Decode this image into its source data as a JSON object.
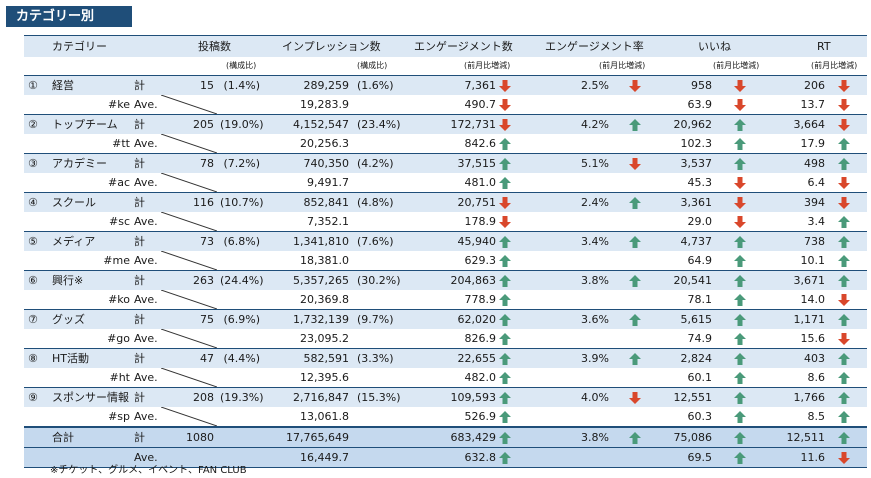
{
  "title": "カテゴリー別",
  "headers": {
    "category": "カテゴリー",
    "posts": "投稿数",
    "impressions": "インプレッション数",
    "engagements": "エンゲージメント数",
    "eng_rate": "エンゲージメント率",
    "likes": "いいね",
    "rt": "RT"
  },
  "subheaders": {
    "posts_ratio": "(構成比)",
    "imp_ratio": "(構成比)",
    "eng_mom": "(前月比増減)",
    "rate_mom": "(前月比増減)",
    "likes_mom": "(前月比増減)",
    "rt_mom": "(前月比増減)"
  },
  "labels": {
    "total": "計",
    "ave": "Ave."
  },
  "colors": {
    "up": "#4a9a7a",
    "down": "#d9472b",
    "header_bg": "#1f4e79",
    "band": "#dce8f4"
  },
  "rows": [
    {
      "num": "①",
      "name": "経営",
      "tag": "#ke",
      "posts": "15",
      "posts_ratio": "(1.4%)",
      "imp": "289,259",
      "imp_ratio": "(1.6%)",
      "eng": "7,361",
      "eng_dir": "down",
      "rate": "2.5%",
      "rate_dir": "down",
      "likes": "958",
      "likes_dir": "down",
      "rt": "206",
      "rt_dir": "down",
      "ave_imp": "19,283.9",
      "ave_eng": "490.7",
      "ave_eng_dir": "down",
      "ave_likes": "63.9",
      "ave_likes_dir": "down",
      "ave_rt": "13.7",
      "ave_rt_dir": "down"
    },
    {
      "num": "②",
      "name": "トップチーム",
      "tag": "#tt",
      "posts": "205",
      "posts_ratio": "(19.0%)",
      "imp": "4,152,547",
      "imp_ratio": "(23.4%)",
      "eng": "172,731",
      "eng_dir": "down",
      "rate": "4.2%",
      "rate_dir": "up",
      "likes": "20,962",
      "likes_dir": "up",
      "rt": "3,664",
      "rt_dir": "down",
      "ave_imp": "20,256.3",
      "ave_eng": "842.6",
      "ave_eng_dir": "up",
      "ave_likes": "102.3",
      "ave_likes_dir": "up",
      "ave_rt": "17.9",
      "ave_rt_dir": "up"
    },
    {
      "num": "③",
      "name": "アカデミー",
      "tag": "#ac",
      "posts": "78",
      "posts_ratio": "(7.2%)",
      "imp": "740,350",
      "imp_ratio": "(4.2%)",
      "eng": "37,515",
      "eng_dir": "up",
      "rate": "5.1%",
      "rate_dir": "down",
      "likes": "3,537",
      "likes_dir": "up",
      "rt": "498",
      "rt_dir": "up",
      "ave_imp": "9,491.7",
      "ave_eng": "481.0",
      "ave_eng_dir": "up",
      "ave_likes": "45.3",
      "ave_likes_dir": "down",
      "ave_rt": "6.4",
      "ave_rt_dir": "down"
    },
    {
      "num": "④",
      "name": "スクール",
      "tag": "#sc",
      "posts": "116",
      "posts_ratio": "(10.7%)",
      "imp": "852,841",
      "imp_ratio": "(4.8%)",
      "eng": "20,751",
      "eng_dir": "down",
      "rate": "2.4%",
      "rate_dir": "up",
      "likes": "3,361",
      "likes_dir": "down",
      "rt": "394",
      "rt_dir": "down",
      "ave_imp": "7,352.1",
      "ave_eng": "178.9",
      "ave_eng_dir": "down",
      "ave_likes": "29.0",
      "ave_likes_dir": "down",
      "ave_rt": "3.4",
      "ave_rt_dir": "up"
    },
    {
      "num": "⑤",
      "name": "メディア",
      "tag": "#me",
      "posts": "73",
      "posts_ratio": "(6.8%)",
      "imp": "1,341,810",
      "imp_ratio": "(7.6%)",
      "eng": "45,940",
      "eng_dir": "up",
      "rate": "3.4%",
      "rate_dir": "up",
      "likes": "4,737",
      "likes_dir": "up",
      "rt": "738",
      "rt_dir": "up",
      "ave_imp": "18,381.0",
      "ave_eng": "629.3",
      "ave_eng_dir": "up",
      "ave_likes": "64.9",
      "ave_likes_dir": "up",
      "ave_rt": "10.1",
      "ave_rt_dir": "up"
    },
    {
      "num": "⑥",
      "name": "興行※",
      "tag": "#ko",
      "posts": "263",
      "posts_ratio": "(24.4%)",
      "imp": "5,357,265",
      "imp_ratio": "(30.2%)",
      "eng": "204,863",
      "eng_dir": "up",
      "rate": "3.8%",
      "rate_dir": "up",
      "likes": "20,541",
      "likes_dir": "up",
      "rt": "3,671",
      "rt_dir": "up",
      "ave_imp": "20,369.8",
      "ave_eng": "778.9",
      "ave_eng_dir": "up",
      "ave_likes": "78.1",
      "ave_likes_dir": "up",
      "ave_rt": "14.0",
      "ave_rt_dir": "down"
    },
    {
      "num": "⑦",
      "name": "グッズ",
      "tag": "#go",
      "posts": "75",
      "posts_ratio": "(6.9%)",
      "imp": "1,732,139",
      "imp_ratio": "(9.7%)",
      "eng": "62,020",
      "eng_dir": "up",
      "rate": "3.6%",
      "rate_dir": "up",
      "likes": "5,615",
      "likes_dir": "up",
      "rt": "1,171",
      "rt_dir": "up",
      "ave_imp": "23,095.2",
      "ave_eng": "826.9",
      "ave_eng_dir": "up",
      "ave_likes": "74.9",
      "ave_likes_dir": "up",
      "ave_rt": "15.6",
      "ave_rt_dir": "down"
    },
    {
      "num": "⑧",
      "name": "HT活動",
      "tag": "#ht",
      "posts": "47",
      "posts_ratio": "(4.4%)",
      "imp": "582,591",
      "imp_ratio": "(3.3%)",
      "eng": "22,655",
      "eng_dir": "up",
      "rate": "3.9%",
      "rate_dir": "up",
      "likes": "2,824",
      "likes_dir": "up",
      "rt": "403",
      "rt_dir": "up",
      "ave_imp": "12,395.6",
      "ave_eng": "482.0",
      "ave_eng_dir": "up",
      "ave_likes": "60.1",
      "ave_likes_dir": "up",
      "ave_rt": "8.6",
      "ave_rt_dir": "up"
    },
    {
      "num": "⑨",
      "name": "スポンサー情報",
      "tag": "#sp",
      "posts": "208",
      "posts_ratio": "(19.3%)",
      "imp": "2,716,847",
      "imp_ratio": "(15.3%)",
      "eng": "109,593",
      "eng_dir": "up",
      "rate": "4.0%",
      "rate_dir": "down",
      "likes": "12,551",
      "likes_dir": "up",
      "rt": "1,766",
      "rt_dir": "up",
      "ave_imp": "13,061.8",
      "ave_eng": "526.9",
      "ave_eng_dir": "up",
      "ave_likes": "60.3",
      "ave_likes_dir": "up",
      "ave_rt": "8.5",
      "ave_rt_dir": "up"
    }
  ],
  "total": {
    "name": "合計",
    "posts": "1080",
    "imp": "17,765,649",
    "eng": "683,429",
    "eng_dir": "up",
    "rate": "3.8%",
    "rate_dir": "up",
    "likes": "75,086",
    "likes_dir": "up",
    "rt": "12,511",
    "rt_dir": "up",
    "ave_imp": "16,449.7",
    "ave_eng": "632.8",
    "ave_eng_dir": "up",
    "ave_likes": "69.5",
    "ave_likes_dir": "up",
    "ave_rt": "11.6",
    "ave_rt_dir": "down"
  },
  "note": "※チケット、グルメ、イベント、FAN CLUB"
}
